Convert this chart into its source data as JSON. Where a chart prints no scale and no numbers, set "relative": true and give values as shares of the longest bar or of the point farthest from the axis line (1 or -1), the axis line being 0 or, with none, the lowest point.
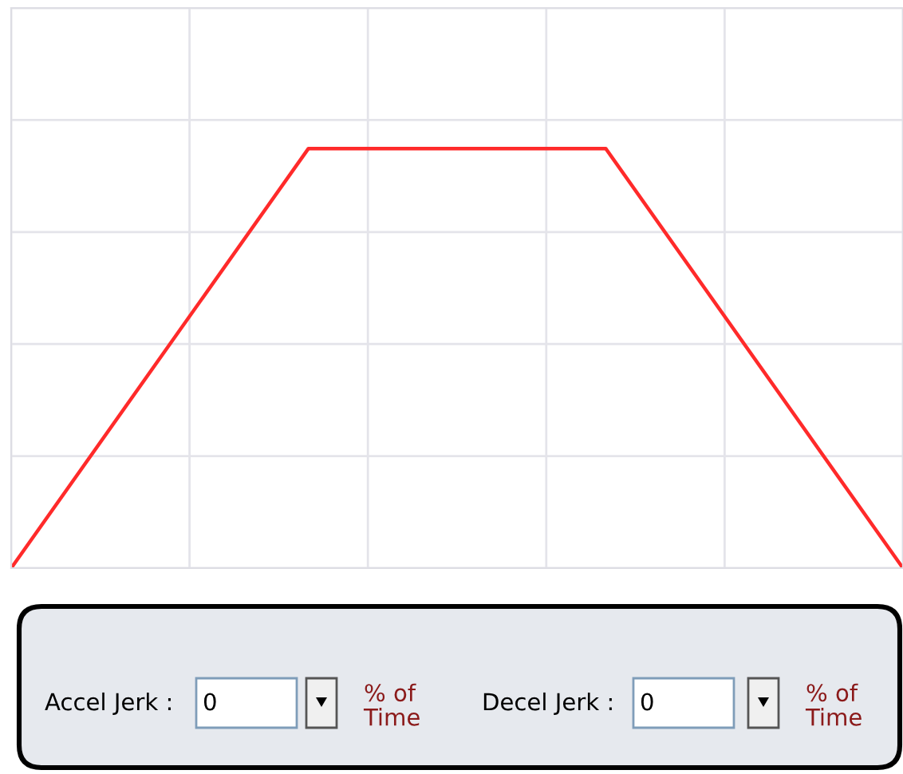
{
  "chart_data": {
    "type": "line",
    "relative": true,
    "categories": [
      null,
      null,
      null,
      null
    ],
    "series": [
      {
        "color": "#ff2a2a",
        "values": [
          0,
          1,
          1,
          0
        ]
      }
    ],
    "grid": true,
    "marker": "none",
    "line_style": "solid",
    "legend": false,
    "annotations": [
      "Accel Jerk :",
      "0",
      "% of\nTime",
      "Decel Jerk :",
      "0",
      "% of\nTime"
    ]
  }
}
